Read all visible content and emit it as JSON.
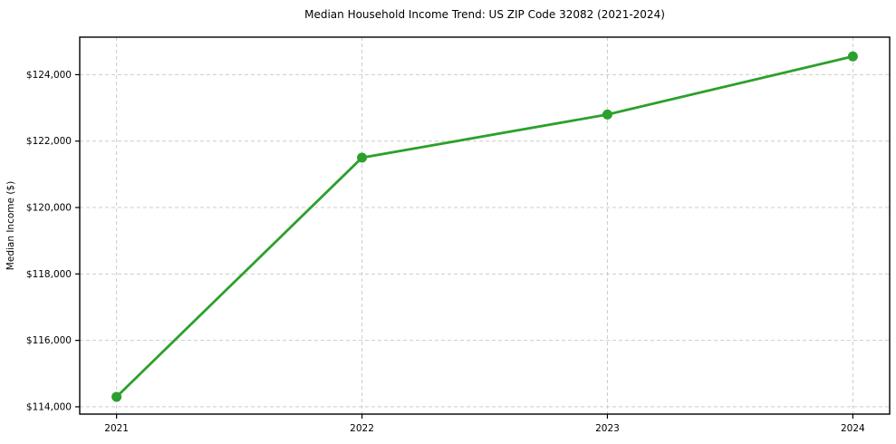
{
  "figure": {
    "title": "Median Household Income Trend: US ZIP Code 32082 (2021-2024)"
  },
  "chart_data": {
    "type": "line",
    "title": "Median Household Income Trend: US ZIP Code 32082 (2021-2024)",
    "x": [
      2021,
      2022,
      2023,
      2024
    ],
    "xtick_labels": [
      "2021",
      "2022",
      "2023",
      "2024"
    ],
    "series": [
      {
        "name": "Median Household Income",
        "values": [
          114300,
          121500,
          122800,
          124550
        ]
      }
    ],
    "xlabel": "",
    "ylabel": "Median Income ($)",
    "xlim": [
      2020.85,
      2024.15
    ],
    "ylim": [
      113780,
      125130
    ],
    "yticks": [
      114000,
      116000,
      118000,
      120000,
      122000,
      124000
    ],
    "ytick_labels": [
      "$114,000",
      "$116,000",
      "$118,000",
      "$120,000",
      "$122,000",
      "$124,000"
    ],
    "grid": true,
    "grid_style": "dashed",
    "legend_position": "none",
    "line_color": "#2ca02c",
    "marker": "circle",
    "grid_color": "#cccccc",
    "spine_color": "#000000",
    "background": "#ffffff"
  }
}
